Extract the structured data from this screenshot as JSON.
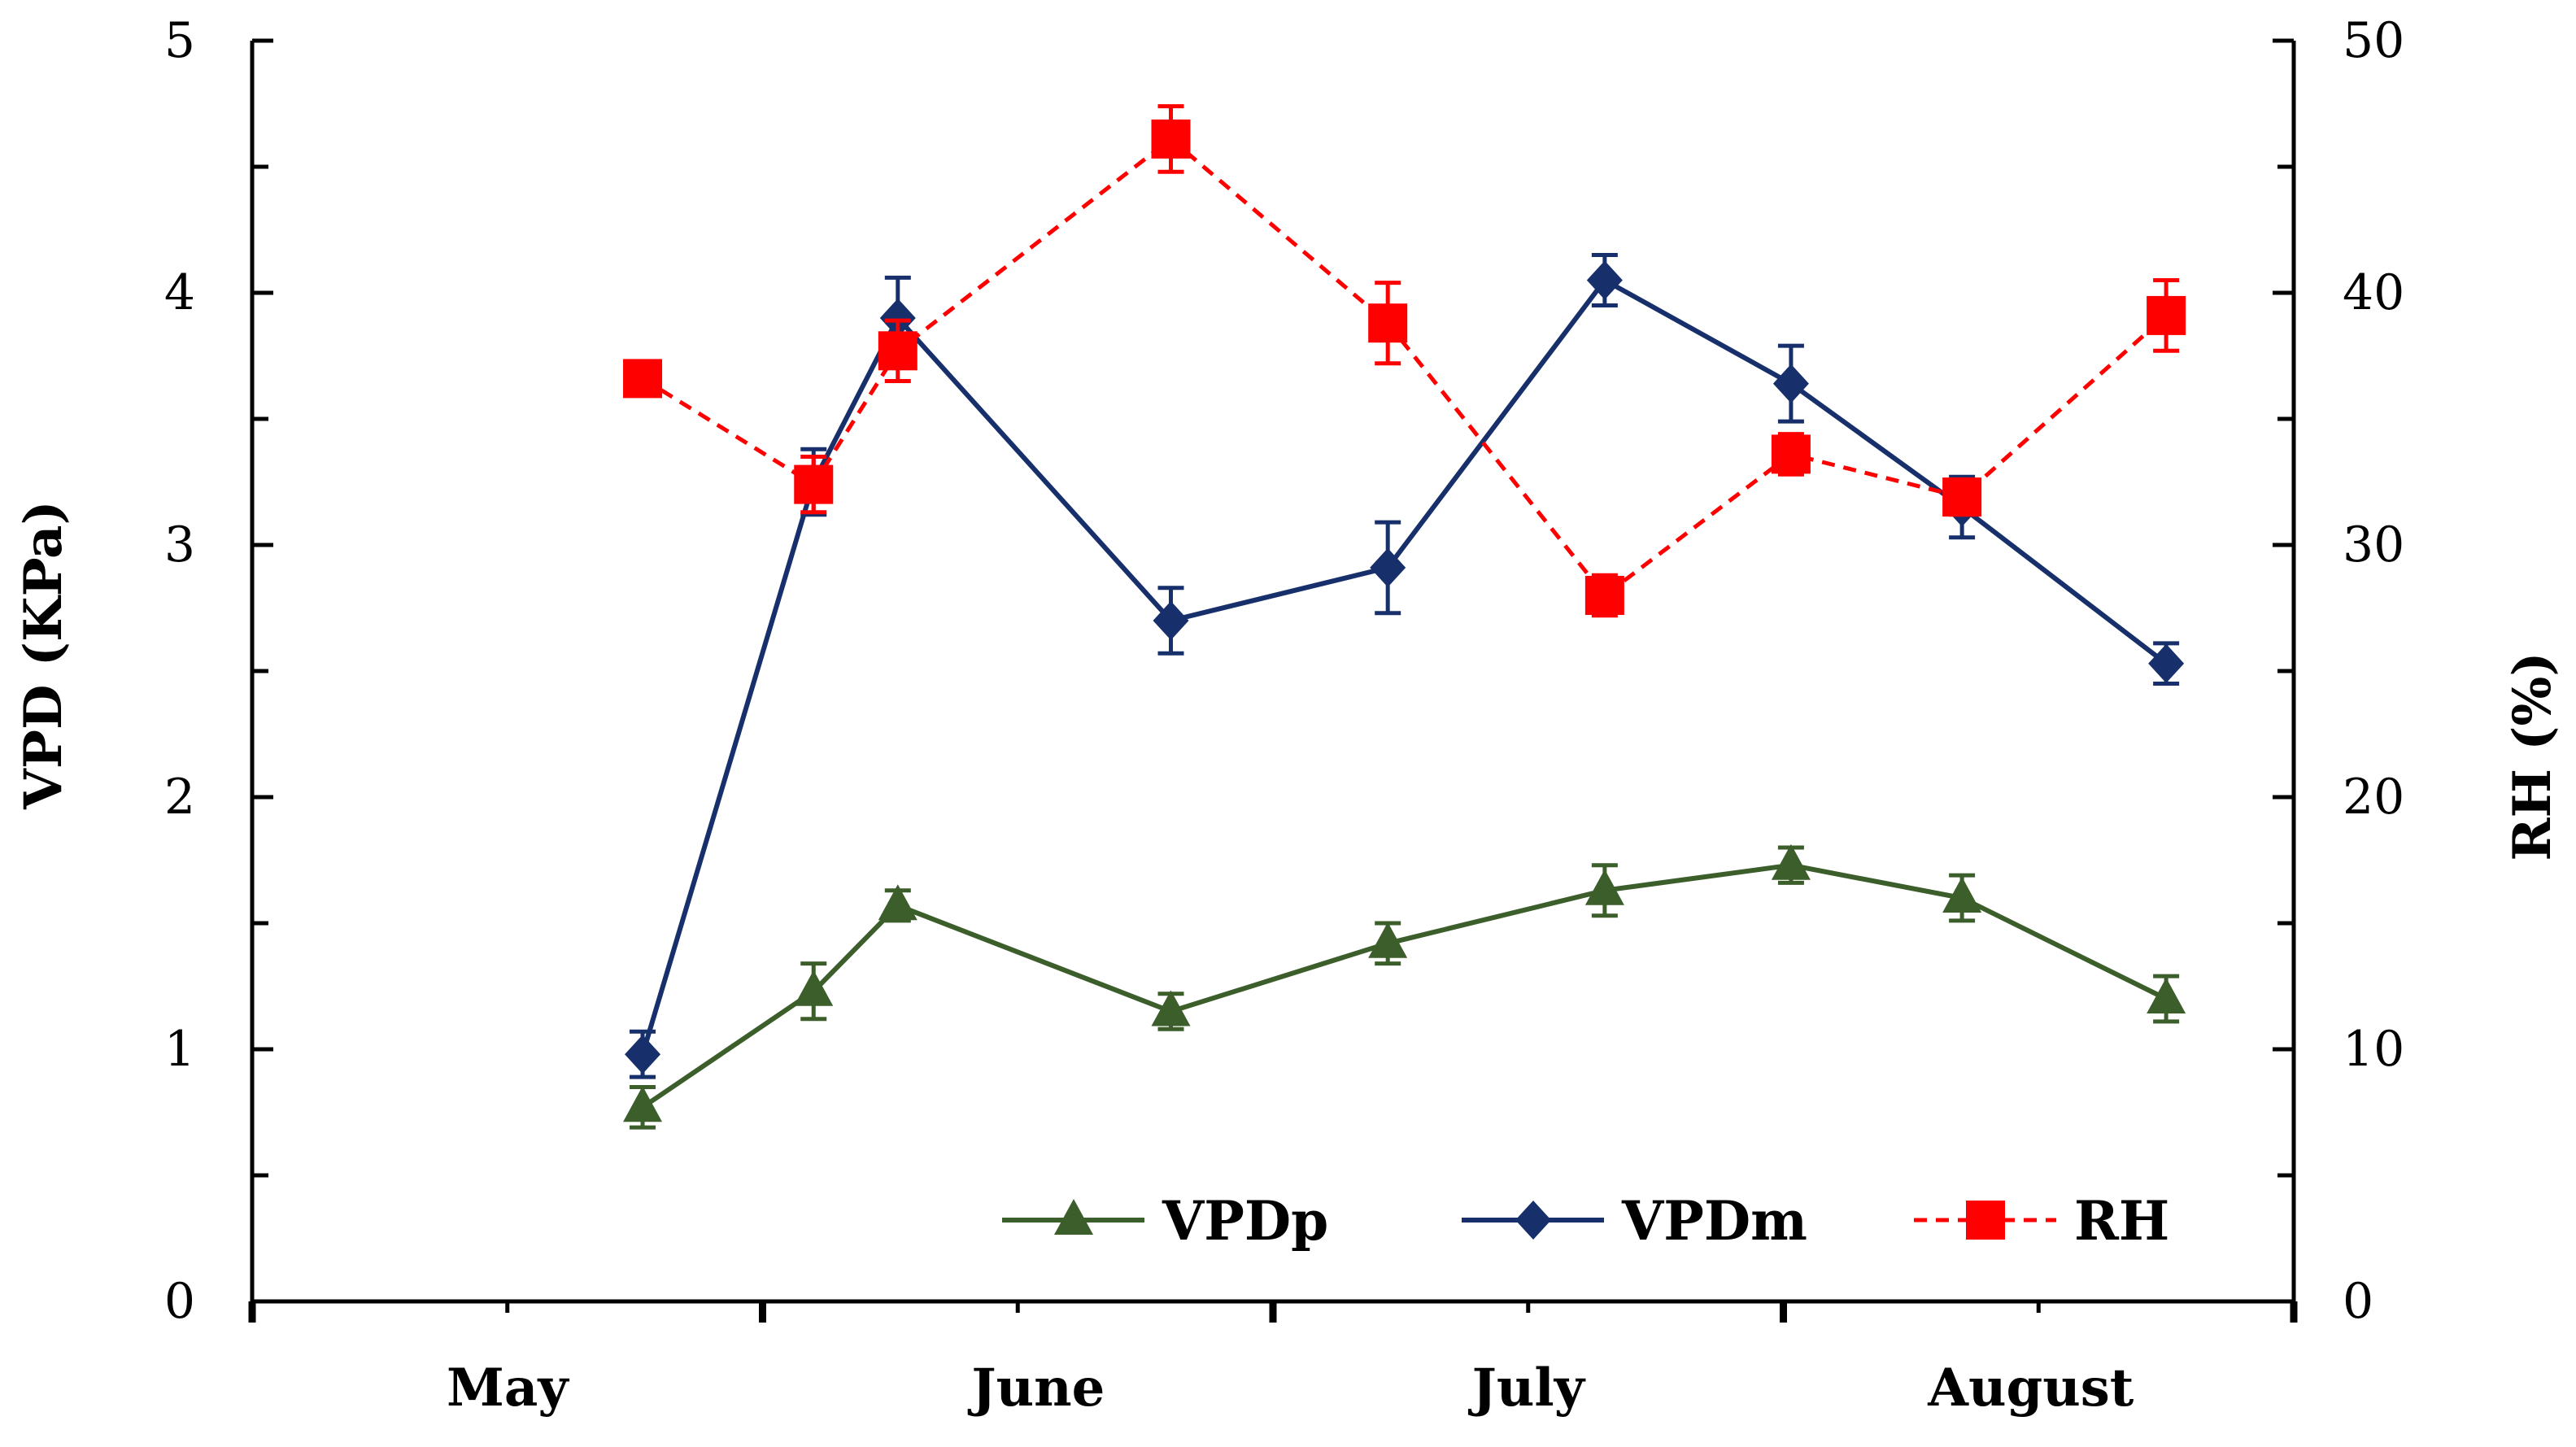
{
  "chart_data": {
    "type": "line",
    "xlabel": "",
    "ylabel": "VPD (KPa)",
    "y2label": "RH (%)",
    "ylim": [
      0,
      5
    ],
    "y2lim": [
      0,
      50
    ],
    "yticks": [
      "0",
      "1",
      "2",
      "3",
      "4",
      "5"
    ],
    "y2ticks": [
      "0",
      "10",
      "20",
      "30",
      "40",
      "50"
    ],
    "xlim": [
      0,
      8
    ],
    "months": [
      {
        "label": "May",
        "x": 1.0
      },
      {
        "label": "June",
        "x": 3.08
      },
      {
        "label": "July",
        "x": 5.0
      },
      {
        "label": "August",
        "x": 6.97
      }
    ],
    "x": [
      1.53,
      2.2,
      2.53,
      3.6,
      4.45,
      5.3,
      6.03,
      6.7,
      7.5
    ],
    "legend_position": "bottom-right",
    "series": [
      {
        "name": "VPDp",
        "axis": "left",
        "color": "#3b5e2b",
        "marker": "triangle",
        "dash": "solid",
        "values": [
          0.77,
          1.23,
          1.57,
          1.15,
          1.42,
          1.63,
          1.73,
          1.6,
          1.2
        ],
        "errors": [
          0.08,
          0.11,
          0.06,
          0.07,
          0.08,
          0.1,
          0.07,
          0.09,
          0.09
        ]
      },
      {
        "name": "VPDm",
        "axis": "left",
        "color": "#17306b",
        "marker": "diamond",
        "dash": "solid",
        "values": [
          0.98,
          3.25,
          3.9,
          2.7,
          2.91,
          4.05,
          3.64,
          3.15,
          2.53
        ],
        "errors": [
          0.09,
          0.13,
          0.16,
          0.13,
          0.18,
          0.1,
          0.15,
          0.12,
          0.08
        ]
      },
      {
        "name": "RH",
        "axis": "right",
        "color": "#ff0000",
        "marker": "square",
        "dash": "dashed",
        "values": [
          36.6,
          32.4,
          37.7,
          46.1,
          38.8,
          28.0,
          33.6,
          31.9,
          39.1
        ],
        "errors": [
          0.5,
          1.1,
          1.2,
          1.3,
          1.6,
          0.8,
          0.8,
          0.7,
          1.4
        ]
      }
    ]
  }
}
